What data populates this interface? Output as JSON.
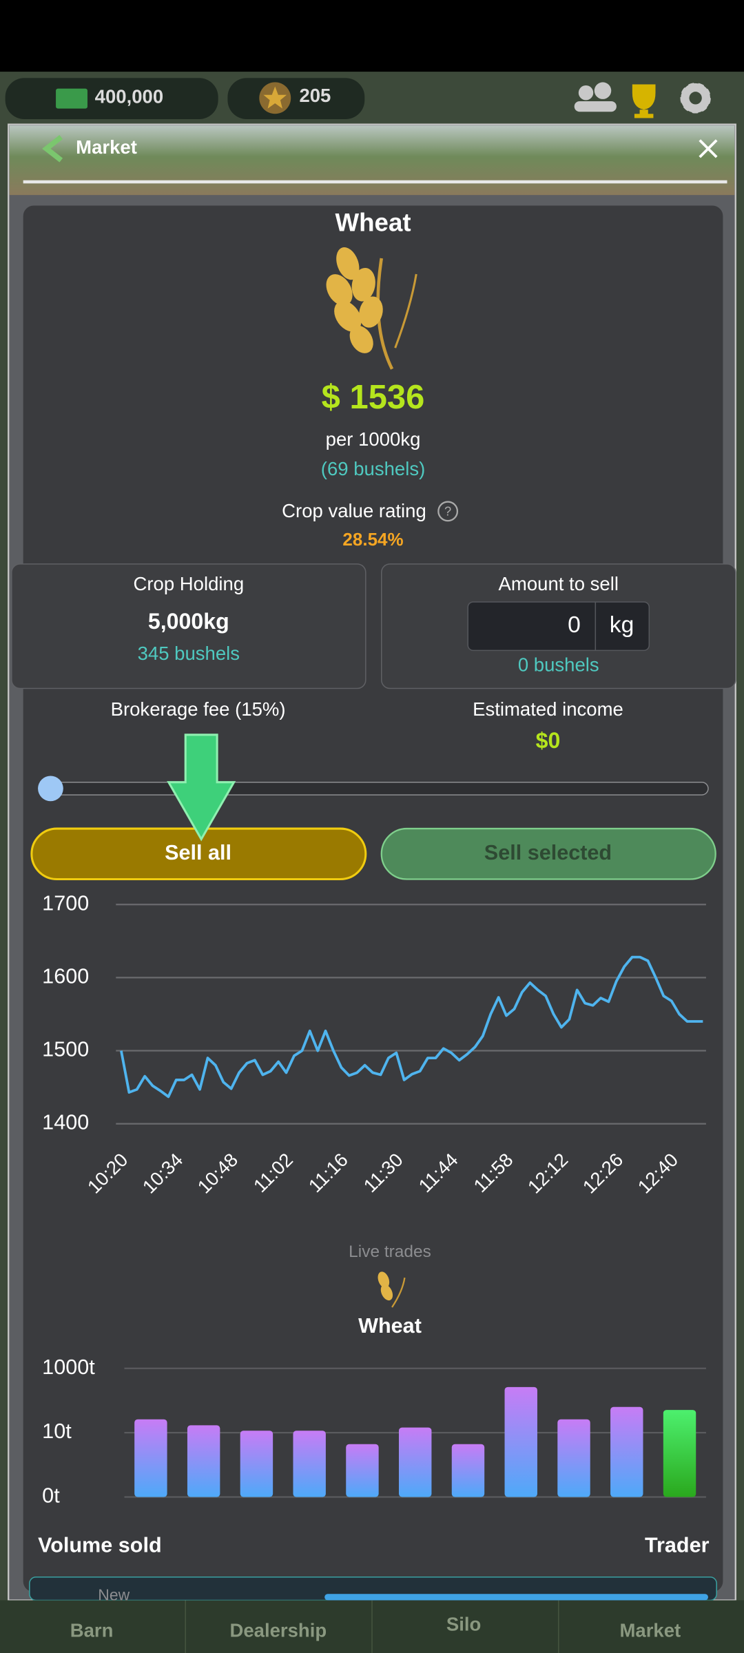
{
  "header": {
    "money": "400,000",
    "stars": "205"
  },
  "market": {
    "title": "Market",
    "crop": "Wheat",
    "price": "$ 1536",
    "per": "per 1000kg",
    "price_bushels": "(69 bushels)",
    "rating_label": "Crop value rating",
    "rating": "28.54%"
  },
  "holding": {
    "label": "Crop Holding",
    "amount": "5,000kg",
    "bushels": "345 bushels"
  },
  "sell": {
    "label": "Amount to sell",
    "input": "0",
    "unit": "kg",
    "bushels": "0 bushels"
  },
  "fee": "Brokerage fee (15%)",
  "estimate": {
    "label": "Estimated income",
    "value": "$0"
  },
  "buttons": {
    "sell_all": "Sell all",
    "sell_selected": "Sell selected"
  },
  "trades": {
    "label": "Live trades",
    "crop": "Wheat",
    "volume": "Volume sold",
    "trader": "Trader",
    "partial": "New"
  },
  "nav": [
    "Barn",
    "Dealership",
    "Silo",
    "Market"
  ],
  "chart_data": [
    {
      "type": "line",
      "color": "#4fb4ee",
      "grid": true,
      "categories": [
        "10:20",
        null,
        null,
        null,
        null,
        null,
        null,
        "10:34",
        null,
        null,
        null,
        null,
        null,
        null,
        "10:48",
        null,
        null,
        null,
        null,
        null,
        null,
        "11:02",
        null,
        null,
        null,
        null,
        null,
        null,
        "11:16",
        null,
        null,
        null,
        null,
        null,
        null,
        "11:30",
        null,
        null,
        null,
        null,
        null,
        null,
        "11:44",
        null,
        null,
        null,
        null,
        null,
        null,
        "11:58",
        null,
        null,
        null,
        null,
        null,
        null,
        "12:12",
        null,
        null,
        null,
        null,
        null,
        null,
        "12:26",
        null,
        null,
        null,
        null,
        null,
        null,
        "12:40",
        null,
        null,
        null,
        null
      ],
      "values": [
        1500,
        1443,
        1447,
        1465,
        1452,
        1445,
        1437,
        1460,
        1460,
        1467,
        1447,
        1490,
        1480,
        1457,
        1448,
        1470,
        1483,
        1487,
        1467,
        1472,
        1485,
        1470,
        1493,
        1500,
        1527,
        1500,
        1527,
        1500,
        1477,
        1466,
        1470,
        1480,
        1470,
        1467,
        1490,
        1497,
        1460,
        1468,
        1472,
        1490,
        1490,
        1503,
        1497,
        1487,
        1495,
        1505,
        1520,
        1550,
        1573,
        1548,
        1557,
        1580,
        1593,
        1583,
        1575,
        1550,
        1532,
        1543,
        1583,
        1565,
        1562,
        1572,
        1567,
        1595,
        1615,
        1628,
        1628,
        1623,
        1600,
        1575,
        1568,
        1550,
        1540,
        1540,
        1540
      ],
      "ylim": [
        1400,
        1700
      ],
      "yticks": [
        1400,
        1500,
        1600,
        1700
      ]
    },
    {
      "type": "bar",
      "yscale": "log",
      "grid": true,
      "categories": [
        null,
        null,
        null,
        null,
        null,
        null,
        null,
        null,
        null,
        null,
        null
      ],
      "values": [
        26,
        17,
        11.5,
        11.5,
        4.4,
        14.5,
        4.4,
        263,
        26,
        63,
        51
      ],
      "colors": [
        [
          "#c77cf5",
          "#4ea9f8"
        ],
        [
          "#c77cf5",
          "#4ea9f8"
        ],
        [
          "#c77cf5",
          "#4ea9f8"
        ],
        [
          "#c77cf5",
          "#4ea9f8"
        ],
        [
          "#c77cf5",
          "#4ea9f8"
        ],
        [
          "#c77cf5",
          "#4ea9f8"
        ],
        [
          "#c77cf5",
          "#4ea9f8"
        ],
        [
          "#c77cf5",
          "#4ea9f8"
        ],
        [
          "#c77cf5",
          "#4ea9f8"
        ],
        [
          "#c77cf5",
          "#4ea9f8"
        ],
        [
          "#4df06e",
          "#2aa81d"
        ]
      ],
      "ylim": [
        0.1,
        1000
      ],
      "yticks": [
        {
          "value": 0.1,
          "label": "0t"
        },
        {
          "value": 10,
          "label": "10t"
        },
        {
          "value": 1000,
          "label": "1000t"
        }
      ]
    }
  ]
}
